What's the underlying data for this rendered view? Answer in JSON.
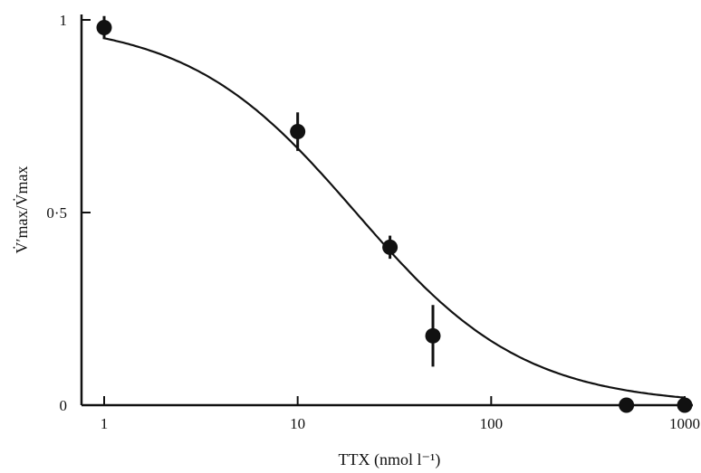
{
  "chart_data": {
    "type": "scatter",
    "title": "",
    "xlabel": "TTX (nmol l⁻¹)",
    "ylabel": "V̇′max/V̇max",
    "xscale": "log",
    "xlim": [
      0.8,
      1000
    ],
    "ylim": [
      0,
      1
    ],
    "x_ticks": [
      1,
      10,
      100,
      1000
    ],
    "x_tick_labels": [
      "1",
      "10",
      "100",
      "1000"
    ],
    "y_ticks": [
      0,
      0.5,
      1
    ],
    "y_tick_labels": [
      "0",
      "0·5",
      "1"
    ],
    "grid": false,
    "legend": "none",
    "series": [
      {
        "type": "scatter",
        "x": [
          1,
          10,
          30,
          50,
          500,
          1000
        ],
        "y": [
          0.98,
          0.71,
          0.41,
          0.18,
          0.0,
          0.0
        ],
        "error": [
          0.03,
          0.05,
          0.03,
          0.08,
          0.0,
          0.0
        ]
      },
      {
        "type": "line",
        "ic50": 20,
        "hill": 1.0
      }
    ],
    "colors": {
      "ink": "#111111",
      "background": "#ffffff"
    }
  }
}
